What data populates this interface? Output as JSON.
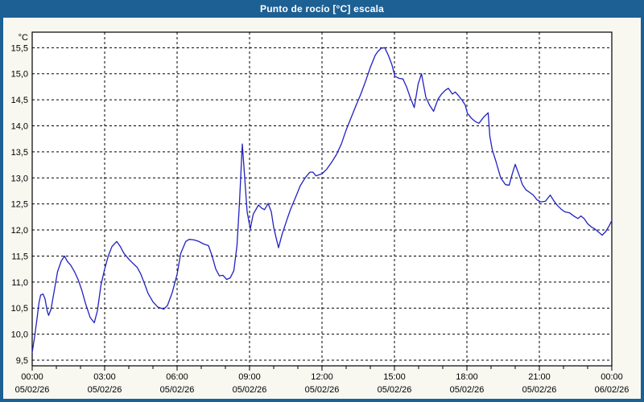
{
  "window": {
    "title": "Punto de rocío [°C] escala"
  },
  "chart_data": {
    "type": "line",
    "title": "Punto de rocío [°C] escala",
    "unit_label": "°C",
    "grid": "dashed",
    "legend": "none",
    "colors": {
      "titlebar": "#1d6094",
      "frame": "#1d6094",
      "outer_bg": "#f8f8f1",
      "plot_bg": "#ffffff",
      "grid": "#000000",
      "text": "#000000",
      "line": "#2121c0"
    },
    "x_axis": {
      "range_hours": [
        0,
        24
      ],
      "minor_tick_every_hours": 1,
      "major_ticks": [
        {
          "hour": 0,
          "time": "00:00",
          "date": "05/02/26"
        },
        {
          "hour": 3,
          "time": "03:00",
          "date": "05/02/26"
        },
        {
          "hour": 6,
          "time": "06:00",
          "date": "05/02/26"
        },
        {
          "hour": 9,
          "time": "09:00",
          "date": "05/02/26"
        },
        {
          "hour": 12,
          "time": "12:00",
          "date": "05/02/26"
        },
        {
          "hour": 15,
          "time": "15:00",
          "date": "05/02/26"
        },
        {
          "hour": 18,
          "time": "18:00",
          "date": "05/02/26"
        },
        {
          "hour": 21,
          "time": "21:00",
          "date": "05/02/26"
        },
        {
          "hour": 24,
          "time": "00:00",
          "date": "06/02/26"
        }
      ]
    },
    "y_axis": {
      "range": [
        9.38,
        15.8
      ],
      "ticks": [
        {
          "value": 9.5,
          "label": "9,5"
        },
        {
          "value": 10.0,
          "label": "10,0"
        },
        {
          "value": 10.5,
          "label": "10,5"
        },
        {
          "value": 11.0,
          "label": "11,0"
        },
        {
          "value": 11.5,
          "label": "11,5"
        },
        {
          "value": 12.0,
          "label": "12,0"
        },
        {
          "value": 12.5,
          "label": "12,5"
        },
        {
          "value": 13.0,
          "label": "13,0"
        },
        {
          "value": 13.5,
          "label": "13,5"
        },
        {
          "value": 14.0,
          "label": "14,0"
        },
        {
          "value": 14.5,
          "label": "14,5"
        },
        {
          "value": 15.0,
          "label": "15,0"
        },
        {
          "value": 15.5,
          "label": "15,5"
        }
      ]
    },
    "series": [
      {
        "name": "Punto de rocío",
        "points": [
          [
            0,
            9.65
          ],
          [
            0.1,
            9.95
          ],
          [
            0.2,
            10.3
          ],
          [
            0.28,
            10.6
          ],
          [
            0.35,
            10.75
          ],
          [
            0.45,
            10.77
          ],
          [
            0.53,
            10.68
          ],
          [
            0.62,
            10.45
          ],
          [
            0.68,
            10.36
          ],
          [
            0.78,
            10.48
          ],
          [
            0.9,
            10.8
          ],
          [
            1.05,
            11.2
          ],
          [
            1.2,
            11.4
          ],
          [
            1.34,
            11.5
          ],
          [
            1.45,
            11.4
          ],
          [
            1.6,
            11.32
          ],
          [
            1.75,
            11.2
          ],
          [
            1.9,
            11.05
          ],
          [
            2.05,
            10.85
          ],
          [
            2.2,
            10.6
          ],
          [
            2.4,
            10.32
          ],
          [
            2.57,
            10.22
          ],
          [
            2.7,
            10.45
          ],
          [
            2.85,
            10.95
          ],
          [
            3,
            11.25
          ],
          [
            3.15,
            11.5
          ],
          [
            3.3,
            11.68
          ],
          [
            3.5,
            11.78
          ],
          [
            3.65,
            11.68
          ],
          [
            3.8,
            11.55
          ],
          [
            4,
            11.44
          ],
          [
            4.15,
            11.37
          ],
          [
            4.35,
            11.28
          ],
          [
            4.5,
            11.15
          ],
          [
            4.65,
            10.97
          ],
          [
            4.8,
            10.78
          ],
          [
            5,
            10.62
          ],
          [
            5.2,
            10.52
          ],
          [
            5.45,
            10.48
          ],
          [
            5.6,
            10.55
          ],
          [
            5.8,
            10.8
          ],
          [
            6,
            11.15
          ],
          [
            6.15,
            11.55
          ],
          [
            6.36,
            11.78
          ],
          [
            6.5,
            11.82
          ],
          [
            6.7,
            11.81
          ],
          [
            6.9,
            11.78
          ],
          [
            7.1,
            11.73
          ],
          [
            7.3,
            11.7
          ],
          [
            7.45,
            11.5
          ],
          [
            7.6,
            11.25
          ],
          [
            7.75,
            11.12
          ],
          [
            7.9,
            11.13
          ],
          [
            8.05,
            11.05
          ],
          [
            8.2,
            11.08
          ],
          [
            8.35,
            11.22
          ],
          [
            8.48,
            11.7
          ],
          [
            8.58,
            12.5
          ],
          [
            8.7,
            13.65
          ],
          [
            8.8,
            13.0
          ],
          [
            8.9,
            12.35
          ],
          [
            9.03,
            12.02
          ],
          [
            9.15,
            12.3
          ],
          [
            9.37,
            12.48
          ],
          [
            9.5,
            12.42
          ],
          [
            9.62,
            12.39
          ],
          [
            9.77,
            12.51
          ],
          [
            9.9,
            12.35
          ],
          [
            10,
            12.05
          ],
          [
            10.1,
            11.85
          ],
          [
            10.2,
            11.66
          ],
          [
            10.35,
            11.92
          ],
          [
            10.55,
            12.2
          ],
          [
            10.7,
            12.4
          ],
          [
            10.9,
            12.62
          ],
          [
            11.1,
            12.85
          ],
          [
            11.3,
            13.0
          ],
          [
            11.5,
            13.11
          ],
          [
            11.62,
            13.11
          ],
          [
            11.75,
            13.04
          ],
          [
            12,
            13.08
          ],
          [
            12.2,
            13.17
          ],
          [
            12.4,
            13.3
          ],
          [
            12.6,
            13.45
          ],
          [
            12.8,
            13.65
          ],
          [
            13,
            13.92
          ],
          [
            13.2,
            14.15
          ],
          [
            13.4,
            14.38
          ],
          [
            13.6,
            14.6
          ],
          [
            13.8,
            14.85
          ],
          [
            14,
            15.12
          ],
          [
            14.2,
            15.35
          ],
          [
            14.3,
            15.42
          ],
          [
            14.45,
            15.49
          ],
          [
            14.6,
            15.5
          ],
          [
            14.75,
            15.35
          ],
          [
            14.89,
            15.18
          ],
          [
            15.02,
            14.95
          ],
          [
            15.2,
            14.91
          ],
          [
            15.35,
            14.9
          ],
          [
            15.5,
            14.75
          ],
          [
            15.65,
            14.55
          ],
          [
            15.82,
            14.35
          ],
          [
            15.98,
            14.8
          ],
          [
            16.12,
            15.0
          ],
          [
            16.3,
            14.55
          ],
          [
            16.45,
            14.4
          ],
          [
            16.62,
            14.28
          ],
          [
            16.8,
            14.51
          ],
          [
            16.95,
            14.61
          ],
          [
            17.1,
            14.68
          ],
          [
            17.23,
            14.72
          ],
          [
            17.4,
            14.61
          ],
          [
            17.52,
            14.65
          ],
          [
            17.65,
            14.58
          ],
          [
            17.8,
            14.49
          ],
          [
            17.93,
            14.4
          ],
          [
            18.02,
            14.24
          ],
          [
            18.2,
            14.14
          ],
          [
            18.35,
            14.08
          ],
          [
            18.5,
            14.05
          ],
          [
            18.7,
            14.17
          ],
          [
            18.88,
            14.25
          ],
          [
            18.95,
            13.8
          ],
          [
            19.05,
            13.54
          ],
          [
            19.2,
            13.32
          ],
          [
            19.4,
            13.0
          ],
          [
            19.6,
            12.87
          ],
          [
            19.75,
            12.86
          ],
          [
            19.88,
            13.08
          ],
          [
            20,
            13.26
          ],
          [
            20.15,
            13.07
          ],
          [
            20.3,
            12.87
          ],
          [
            20.45,
            12.77
          ],
          [
            20.6,
            12.72
          ],
          [
            20.75,
            12.67
          ],
          [
            20.9,
            12.58
          ],
          [
            21.05,
            12.54
          ],
          [
            21.25,
            12.55
          ],
          [
            21.45,
            12.67
          ],
          [
            21.6,
            12.56
          ],
          [
            21.75,
            12.47
          ],
          [
            21.9,
            12.4
          ],
          [
            22.05,
            12.35
          ],
          [
            22.25,
            12.33
          ],
          [
            22.45,
            12.26
          ],
          [
            22.6,
            12.22
          ],
          [
            22.72,
            12.27
          ],
          [
            22.85,
            12.22
          ],
          [
            23,
            12.12
          ],
          [
            23.15,
            12.06
          ],
          [
            23.3,
            12.02
          ],
          [
            23.45,
            11.96
          ],
          [
            23.6,
            11.9
          ],
          [
            23.75,
            11.97
          ],
          [
            23.88,
            12.07
          ],
          [
            24,
            12.18
          ]
        ]
      }
    ]
  }
}
